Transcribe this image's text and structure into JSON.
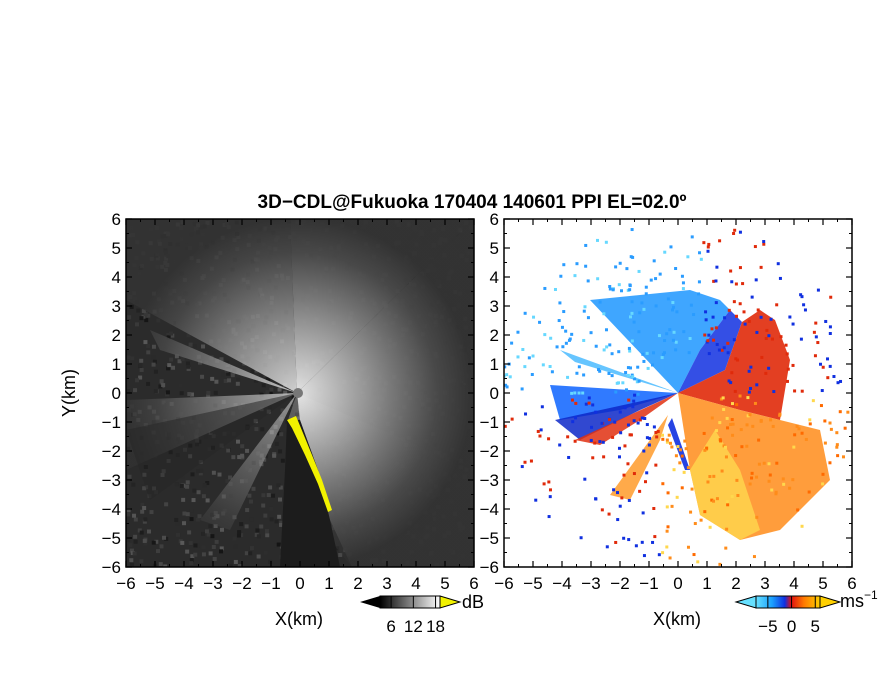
{
  "title": "3D−CDL@Fukuoka 170404 140601 PPI EL=02.0º",
  "chart_data": [
    {
      "type": "heatmap",
      "name": "reflectivity",
      "xlabel": "X(km)",
      "ylabel": "Y(km)",
      "xlim": [
        -6,
        6
      ],
      "ylim": [
        -6,
        6
      ],
      "xticks": [
        -6,
        -5,
        -4,
        -3,
        -2,
        -1,
        0,
        1,
        2,
        3,
        4,
        5,
        6
      ],
      "yticks": [
        -6,
        -5,
        -4,
        -3,
        -2,
        -1,
        0,
        1,
        2,
        3,
        4,
        5,
        6
      ],
      "xtick_labels": [
        "−6",
        "−5",
        "−4",
        "−3",
        "−2",
        "−1",
        "0",
        "1",
        "2",
        "3",
        "4",
        "5",
        "6"
      ],
      "ytick_labels": [
        "−6",
        "−5",
        "−4",
        "−3",
        "−2",
        "−1",
        "0",
        "1",
        "2",
        "3",
        "4",
        "5",
        "6"
      ],
      "colorbar": {
        "unit": "dB",
        "ticks": [
          6,
          12,
          18
        ],
        "tick_labels": [
          "6",
          "12",
          "18"
        ],
        "colormap": "grayscale",
        "high_color": "#f2f200"
      }
    },
    {
      "type": "heatmap",
      "name": "doppler-velocity",
      "xlabel": "X(km)",
      "ylabel": "",
      "xlim": [
        -6,
        6
      ],
      "ylim": [
        -6,
        6
      ],
      "xticks": [
        -6,
        -5,
        -4,
        -3,
        -2,
        -1,
        0,
        1,
        2,
        3,
        4,
        5,
        6
      ],
      "yticks": [
        -6,
        -5,
        -4,
        -3,
        -2,
        -1,
        0,
        1,
        2,
        3,
        4,
        5,
        6
      ],
      "xtick_labels": [
        "−6",
        "−5",
        "−4",
        "−3",
        "−2",
        "−1",
        "0",
        "1",
        "2",
        "3",
        "4",
        "5",
        "6"
      ],
      "ytick_labels": [
        "−6",
        "−5",
        "−4",
        "−3",
        "−2",
        "−1",
        "0",
        "1",
        "2",
        "3",
        "4",
        "5",
        "6"
      ],
      "colorbar": {
        "unit": "ms",
        "unit_exponent": "−1",
        "ticks": [
          -5,
          0,
          5
        ],
        "tick_labels": [
          "−5",
          "0",
          "5"
        ],
        "colormap": "cyan-blue-red-orange-yellow"
      }
    }
  ]
}
